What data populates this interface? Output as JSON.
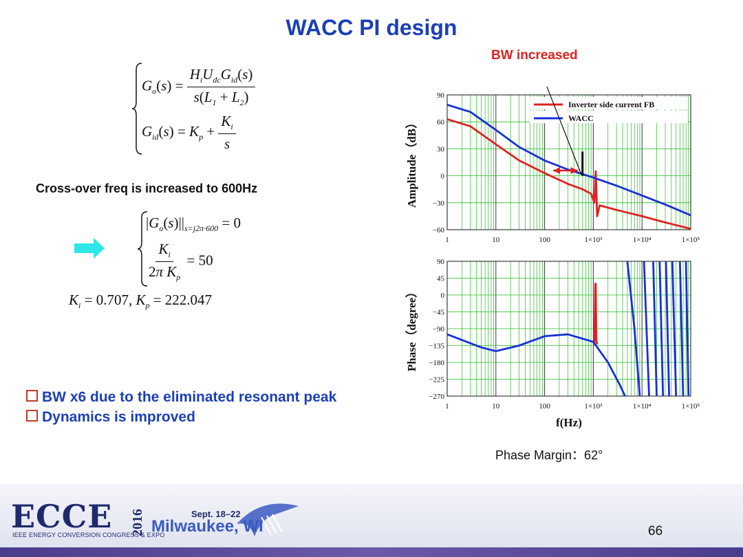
{
  "slide": {
    "title": "WACC PI design",
    "bw_annotation": "BW increased",
    "crossover_text": "Cross-over freq is increased to 600Hz",
    "bullets": [
      "BW x6 due to the eliminated resonant peak",
      "Dynamics is improved"
    ],
    "phase_margin": "Phase Margin：62°",
    "page_number": "66"
  },
  "equations": {
    "go_lhs": "G",
    "go_num": "H_i U_dc G_id (s)",
    "go_den": "s(L1 + L2)",
    "gid_rhs": "= K_p + K_i / s",
    "mag_eq": "|G_o(s)| at s=j2π·600 = 0",
    "ratio_eq": "K_i / (2π K_p) = 50",
    "result": "K_i = 0.707, K_p = 222.047"
  },
  "footer": {
    "logo_text": "ECCE",
    "year": "2016",
    "subtitle": "IEEE ENERGY CONVERSION CONGRESS & EXPO",
    "dates": "Sept. 18–22",
    "city": "Milwaukee, WI"
  },
  "colors": {
    "title": "#1b3fb8",
    "red": "#e02020",
    "blue": "#1530d8",
    "grid": "#22bb22"
  },
  "chart_data": [
    {
      "type": "line",
      "xscale": "log",
      "xlim": [
        1,
        100000
      ],
      "ylim": [
        -60,
        90
      ],
      "ylabel": "Amplitude（dB）",
      "yticks": [
        "90",
        "60",
        "30",
        "0",
        "−30",
        "−60"
      ],
      "xticks": [
        "1",
        "10",
        "100",
        "1×10³",
        "1×10⁴",
        "1×10⁵"
      ],
      "legend": [
        "Inverter side current FB",
        "WACC"
      ],
      "legend_position": "top-right",
      "grid": true,
      "series": [
        {
          "name": "Inverter side current FB",
          "color": "#e02020",
          "x": [
            1,
            3,
            10,
            30,
            100,
            300,
            600,
            900,
            1050,
            1120,
            1200,
            1350,
            3000,
            10000,
            30000,
            100000
          ],
          "y": [
            63,
            55,
            35,
            17,
            3,
            -9,
            -15,
            -20,
            -30,
            5,
            -45,
            -33,
            -38,
            -45,
            -52,
            -59
          ]
        },
        {
          "name": "WACC",
          "color": "#1530d8",
          "x": [
            1,
            3,
            10,
            30,
            100,
            300,
            1000,
            3000,
            10000,
            30000,
            100000
          ],
          "y": [
            79,
            71,
            51,
            32,
            17,
            7,
            -2,
            -11,
            -22,
            -32,
            -44
          ]
        }
      ]
    },
    {
      "type": "line",
      "xscale": "log",
      "xlim": [
        1,
        100000
      ],
      "ylim": [
        -270,
        90
      ],
      "ylabel": "Phase（degree）",
      "xlabel": "f(Hz)",
      "yticks": [
        "90",
        "45",
        "0",
        "−45",
        "−90",
        "−135",
        "−180",
        "−225",
        "−270"
      ],
      "xticks": [
        "1",
        "10",
        "100",
        "1×10³",
        "1×10⁴",
        "1×10⁵"
      ],
      "grid": true,
      "series": [
        {
          "name": "Inverter side current FB",
          "color": "#e02020",
          "x": [
            1000,
            1050,
            1100,
            1120,
            1150,
            1200
          ],
          "y": [
            -132,
            -130,
            30,
            30,
            -120,
            -132
          ]
        },
        {
          "name": "WACC",
          "color": "#1530d8",
          "x": [
            1,
            2,
            5,
            10,
            30,
            100,
            300,
            1000,
            2000,
            3500,
            4500,
            5000,
            7000,
            9000,
            11000,
            14000,
            17000,
            20000,
            23000,
            27000,
            31000,
            36000,
            42000,
            50000,
            60000,
            70000,
            80000,
            90000,
            100000
          ],
          "y": [
            -105,
            -120,
            -140,
            -150,
            -135,
            -110,
            -105,
            -125,
            -180,
            -240,
            -270,
            90,
            -90,
            -270,
            90,
            -270,
            90,
            -270,
            90,
            -270,
            90,
            -270,
            90,
            -270,
            90,
            -270,
            90,
            -270,
            90
          ]
        }
      ]
    }
  ]
}
